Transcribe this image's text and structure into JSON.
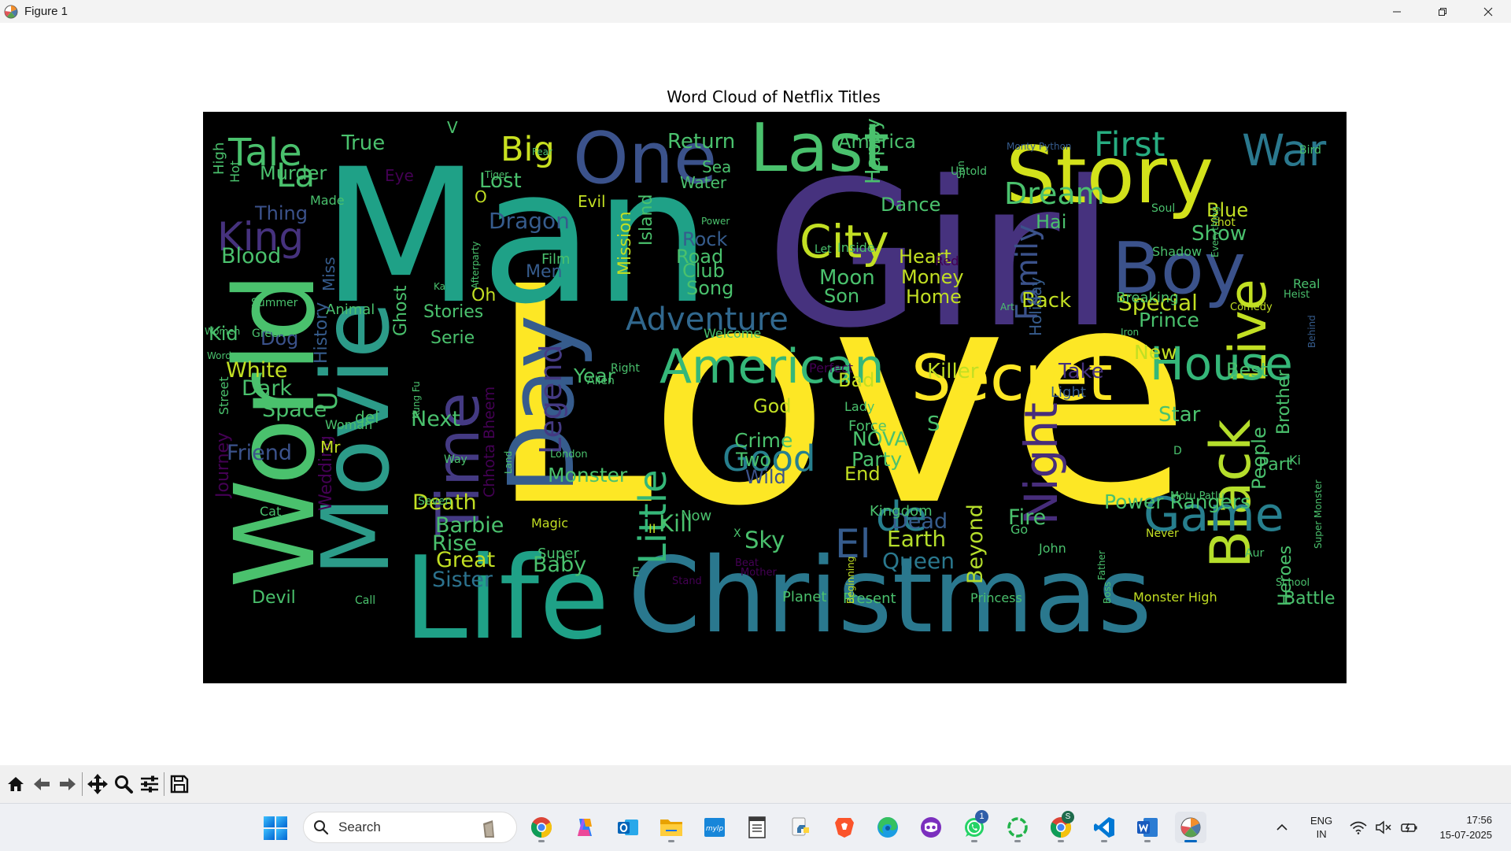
{
  "window": {
    "title": "Figure 1",
    "controls": {
      "minimize": "minimize-icon",
      "maximize": "restore-icon",
      "close": "close-icon"
    }
  },
  "figure": {
    "title": "Word Cloud of Netflix Titles",
    "background": "#000000",
    "palette": [
      "#440154",
      "#46327e",
      "#365c8d",
      "#277f8e",
      "#1fa187",
      "#4ac16d",
      "#a0da39",
      "#fde725"
    ]
  },
  "chart_data": {
    "type": "wordcloud",
    "title": "Word Cloud of Netflix Titles",
    "words": [
      {
        "t": "Love",
        "c": "#fde725"
      },
      {
        "t": "Man",
        "c": "#1fa187"
      },
      {
        "t": "Girl",
        "c": "#46327e"
      },
      {
        "t": "Christmas",
        "c": "#2a788e"
      },
      {
        "t": "Life",
        "c": "#1fa187"
      },
      {
        "t": "World",
        "c": "#4ac16d"
      },
      {
        "t": "Movie",
        "c": "#2c9b89"
      },
      {
        "t": "Story",
        "c": "#d3e21b"
      },
      {
        "t": "Last",
        "c": "#4ac16d"
      },
      {
        "t": "One",
        "c": "#3b528b"
      },
      {
        "t": "Day",
        "c": "#365c8d"
      },
      {
        "t": "Boy",
        "c": "#3b528b"
      },
      {
        "t": "Secret",
        "c": "#fde725"
      },
      {
        "t": "American",
        "c": "#35b779"
      },
      {
        "t": "Live",
        "c": "#c2df23"
      },
      {
        "t": "Black",
        "c": "#b5de2b"
      },
      {
        "t": "House",
        "c": "#35b779"
      },
      {
        "t": "Game",
        "c": "#277f8e"
      },
      {
        "t": "Time",
        "c": "#443a83"
      },
      {
        "t": "City",
        "c": "#c2df23"
      },
      {
        "t": "Tale",
        "c": "#4ac16d"
      },
      {
        "t": "King",
        "c": "#46327e"
      },
      {
        "t": "War",
        "c": "#2a788e"
      },
      {
        "t": "Big",
        "c": "#c8e020"
      },
      {
        "t": "First",
        "c": "#27ad81"
      },
      {
        "t": "Night",
        "c": "#472d7b"
      },
      {
        "t": "Good",
        "c": "#277f8e"
      },
      {
        "t": "Little",
        "c": "#35b779"
      },
      {
        "t": "de",
        "c": "#277f8e"
      },
      {
        "t": "El",
        "c": "#365c8d"
      },
      {
        "t": "Adventure",
        "c": "#31688e"
      },
      {
        "t": "Dream",
        "c": "#4ac16d"
      },
      {
        "t": "Family",
        "c": "#3b528b"
      },
      {
        "t": "Legend",
        "c": "#443a83"
      },
      {
        "t": "La",
        "c": "#4ac16d"
      },
      {
        "t": "Dragon",
        "c": "#365c8d"
      },
      {
        "t": "Power Rangers",
        "c": "#4ac16d"
      },
      {
        "t": "Earth",
        "c": "#b5de2b"
      },
      {
        "t": "Queen",
        "c": "#2a788e"
      },
      {
        "t": "Barbie",
        "c": "#4ac16d"
      },
      {
        "t": "Great",
        "c": "#c2df23"
      },
      {
        "t": "Sister",
        "c": "#2c728e"
      },
      {
        "t": "Rise",
        "c": "#4ac16d"
      },
      {
        "t": "Baby",
        "c": "#4ac16d"
      },
      {
        "t": "Kill",
        "c": "#4ac16d"
      },
      {
        "t": "Sky",
        "c": "#4ac16d"
      },
      {
        "t": "Dead",
        "c": "#365c8d"
      },
      {
        "t": "Fire",
        "c": "#4ac16d"
      },
      {
        "t": "Beyond",
        "c": "#b5de2b"
      },
      {
        "t": "Monster",
        "c": "#4ac16d"
      },
      {
        "t": "Death",
        "c": "#c2df23"
      },
      {
        "t": "Next",
        "c": "#4ac16d"
      },
      {
        "t": "Space",
        "c": "#4ac16d"
      },
      {
        "t": "Friend",
        "c": "#3b528b"
      },
      {
        "t": "Dark",
        "c": "#4ac16d"
      },
      {
        "t": "White",
        "c": "#c2df23"
      },
      {
        "t": "Kid",
        "c": "#4ac16d"
      },
      {
        "t": "Dog",
        "c": "#3b528b"
      },
      {
        "t": "Blood",
        "c": "#4ac16d"
      },
      {
        "t": "Murder",
        "c": "#4ac16d"
      },
      {
        "t": "True",
        "c": "#4ac16d"
      },
      {
        "t": "Thing",
        "c": "#3b528b"
      },
      {
        "t": "Lost",
        "c": "#4ac16d"
      },
      {
        "t": "Evil",
        "c": "#c2df23"
      },
      {
        "t": "Return",
        "c": "#4ac16d"
      },
      {
        "t": "Sea",
        "c": "#4ac16d"
      },
      {
        "t": "Water",
        "c": "#4ac16d"
      },
      {
        "t": "America",
        "c": "#4ac16d"
      },
      {
        "t": "Happy",
        "c": "#4ac16d"
      },
      {
        "t": "Dance",
        "c": "#4ac16d"
      },
      {
        "t": "Blue",
        "c": "#c2df23"
      },
      {
        "t": "Show",
        "c": "#4ac16d"
      },
      {
        "t": "Hai",
        "c": "#4ac16d"
      },
      {
        "t": "Heart",
        "c": "#c2df23"
      },
      {
        "t": "Money",
        "c": "#c2df23"
      },
      {
        "t": "Home",
        "c": "#c2df23"
      },
      {
        "t": "Moon",
        "c": "#4ac16d"
      },
      {
        "t": "Son",
        "c": "#4ac16d"
      },
      {
        "t": "Back",
        "c": "#c2df23"
      },
      {
        "t": "Special",
        "c": "#c2df23"
      },
      {
        "t": "Prince",
        "c": "#4ac16d"
      },
      {
        "t": "New",
        "c": "#c2df23"
      },
      {
        "t": "Killer",
        "c": "#c2df23"
      },
      {
        "t": "Take",
        "c": "#46327e"
      },
      {
        "t": "Best",
        "c": "#4ac16d"
      },
      {
        "t": "Star",
        "c": "#4ac16d"
      },
      {
        "t": "People",
        "c": "#4ac16d"
      },
      {
        "t": "Part",
        "c": "#4ac16d"
      },
      {
        "t": "Brother",
        "c": "#4ac16d"
      },
      {
        "t": "Heroes",
        "c": "#4ac16d"
      },
      {
        "t": "Battle",
        "c": "#4ac16d"
      },
      {
        "t": "Crime",
        "c": "#4ac16d"
      },
      {
        "t": "God",
        "c": "#c2df23"
      },
      {
        "t": "Two",
        "c": "#4ac16d"
      },
      {
        "t": "Wild",
        "c": "#3b528b"
      },
      {
        "t": "NOVA",
        "c": "#4ac16d"
      },
      {
        "t": "Party",
        "c": "#4ac16d"
      },
      {
        "t": "End",
        "c": "#c2df23"
      },
      {
        "t": "Force",
        "c": "#4ac16d"
      },
      {
        "t": "Kingdom",
        "c": "#4ac16d"
      },
      {
        "t": "Year",
        "c": "#4ac16d"
      },
      {
        "t": "Bad",
        "c": "#c2df23"
      },
      {
        "t": "Rock",
        "c": "#365c8d"
      },
      {
        "t": "Road",
        "c": "#4ac16d"
      },
      {
        "t": "Club",
        "c": "#4ac16d"
      },
      {
        "t": "Song",
        "c": "#4ac16d"
      },
      {
        "t": "Mission",
        "c": "#c2df23"
      },
      {
        "t": "Island",
        "c": "#4ac16d"
      },
      {
        "t": "Film",
        "c": "#4ac16d"
      },
      {
        "t": "Men",
        "c": "#365c8d"
      },
      {
        "t": "Oh",
        "c": "#c2df23"
      },
      {
        "t": "Stories",
        "c": "#4ac16d"
      },
      {
        "t": "Serie",
        "c": "#4ac16d"
      },
      {
        "t": "Animal",
        "c": "#4ac16d"
      },
      {
        "t": "Miss",
        "c": "#365c8d"
      },
      {
        "t": "History",
        "c": "#365c8d"
      },
      {
        "t": "Ghost",
        "c": "#4ac16d"
      },
      {
        "t": "Chhota Bheem",
        "c": "#440154"
      },
      {
        "t": "Wedding",
        "c": "#440154"
      },
      {
        "t": "Mr",
        "c": "#c2df23"
      },
      {
        "t": "del",
        "c": "#4ac16d"
      },
      {
        "t": "Woman",
        "c": "#4ac16d"
      },
      {
        "t": "Journey",
        "c": "#440154"
      },
      {
        "t": "Street",
        "c": "#4ac16d"
      },
      {
        "t": "High",
        "c": "#4ac16d"
      },
      {
        "t": "Hot",
        "c": "#4ac16d"
      },
      {
        "t": "Devil",
        "c": "#4ac16d"
      },
      {
        "t": "Magic",
        "c": "#c2df23"
      },
      {
        "t": "Super",
        "c": "#4ac16d"
      },
      {
        "t": "Now",
        "c": "#4ac16d"
      },
      {
        "t": "Welcome",
        "c": "#4ac16d"
      },
      {
        "t": "Inside",
        "c": "#4ac16d"
      },
      {
        "t": "Lady",
        "c": "#4ac16d"
      },
      {
        "t": "Planet",
        "c": "#4ac16d"
      },
      {
        "t": "Present",
        "c": "#4ac16d"
      },
      {
        "t": "John",
        "c": "#4ac16d"
      },
      {
        "t": "Princess",
        "c": "#4ac16d"
      },
      {
        "t": "Monster High",
        "c": "#c2df23"
      },
      {
        "t": "Holiday",
        "c": "#365c8d"
      },
      {
        "t": "Eye",
        "c": "#440154"
      },
      {
        "t": "Made",
        "c": "#4ac16d"
      },
      {
        "t": "Cat",
        "c": "#4ac16d"
      },
      {
        "t": "Summer",
        "c": "#4ac16d"
      },
      {
        "t": "Women",
        "c": "#4ac16d"
      },
      {
        "t": "Green",
        "c": "#4ac16d"
      },
      {
        "t": "Word",
        "c": "#4ac16d"
      },
      {
        "t": "Kung Fu",
        "c": "#4ac16d"
      },
      {
        "t": "Seven",
        "c": "#4ac16d"
      },
      {
        "t": "Way",
        "c": "#4ac16d"
      },
      {
        "t": "Call",
        "c": "#4ac16d"
      },
      {
        "t": "Land",
        "c": "#4ac16d"
      },
      {
        "t": "London",
        "c": "#4ac16d"
      },
      {
        "t": "Alien",
        "c": "#4ac16d"
      },
      {
        "t": "Right",
        "c": "#4ac16d"
      },
      {
        "t": "Perfect",
        "c": "#440154"
      },
      {
        "t": "Light",
        "c": "#365c8d"
      },
      {
        "t": "Red",
        "c": "#440154"
      },
      {
        "t": "Let",
        "c": "#4ac16d"
      },
      {
        "t": "Power",
        "c": "#4ac16d"
      },
      {
        "t": "Tiger",
        "c": "#4ac16d"
      },
      {
        "t": "Fear",
        "c": "#4ac16d"
      },
      {
        "t": "Untold",
        "c": "#4ac16d"
      },
      {
        "t": "Sun",
        "c": "#4ac16d"
      },
      {
        "t": "Art",
        "c": "#4ac16d"
      },
      {
        "t": "Monty Python",
        "c": "#365c8d"
      },
      {
        "t": "Bird",
        "c": "#4ac16d"
      },
      {
        "t": "Soul",
        "c": "#4ac16d"
      },
      {
        "t": "Shot",
        "c": "#c2df23"
      },
      {
        "t": "Shadow",
        "c": "#4ac16d"
      },
      {
        "t": "Everything",
        "c": "#4ac16d"
      },
      {
        "t": "Breaking",
        "c": "#4ac16d"
      },
      {
        "t": "Real",
        "c": "#4ac16d"
      },
      {
        "t": "Heist",
        "c": "#4ac16d"
      },
      {
        "t": "Comedy",
        "c": "#c2df23"
      },
      {
        "t": "Iron",
        "c": "#4ac16d"
      },
      {
        "t": "Behind",
        "c": "#365c8d"
      },
      {
        "t": "Ki",
        "c": "#4ac16d"
      },
      {
        "t": "Super Monster",
        "c": "#4ac16d"
      },
      {
        "t": "School",
        "c": "#4ac16d"
      },
      {
        "t": "Aur",
        "c": "#4ac16d"
      },
      {
        "t": "Never",
        "c": "#c2df23"
      },
      {
        "t": "Motu Patlu",
        "c": "#4ac16d"
      },
      {
        "t": "D",
        "c": "#4ac16d"
      },
      {
        "t": "Go",
        "c": "#4ac16d"
      },
      {
        "t": "Father",
        "c": "#4ac16d"
      },
      {
        "t": "Boss",
        "c": "#4ac16d"
      },
      {
        "t": "Beginning",
        "c": "#c2df23"
      },
      {
        "t": "Beat",
        "c": "#440154"
      },
      {
        "t": "Mother",
        "c": "#440154"
      },
      {
        "t": "Stand",
        "c": "#440154"
      },
      {
        "t": "Afterparty",
        "c": "#4ac16d"
      },
      {
        "t": "Ka",
        "c": "#4ac16d"
      },
      {
        "t": "II",
        "c": "#c2df23"
      },
      {
        "t": "E",
        "c": "#4ac16d"
      },
      {
        "t": "X",
        "c": "#4ac16d"
      },
      {
        "t": "V",
        "c": "#4ac16d"
      },
      {
        "t": "O",
        "c": "#c2df23"
      },
      {
        "t": "U",
        "c": "#4ac16d"
      },
      {
        "t": "S",
        "c": "#4ac16d"
      }
    ]
  },
  "toolbar": {
    "buttons": [
      {
        "name": "home-button",
        "icon": "home-icon"
      },
      {
        "name": "back-button",
        "icon": "arrow-left-icon"
      },
      {
        "name": "forward-button",
        "icon": "arrow-right-icon"
      },
      {
        "name": "pan-button",
        "icon": "move-icon"
      },
      {
        "name": "zoom-button",
        "icon": "magnifier-icon"
      },
      {
        "name": "configure-button",
        "icon": "sliders-icon"
      },
      {
        "name": "save-button",
        "icon": "floppy-icon"
      }
    ]
  },
  "taskbar": {
    "search_label": "Search",
    "apps": [
      "chrome-icon",
      "copilot-icon",
      "outlook-icon",
      "file-explorer-icon",
      "mylp-icon",
      "notepad-icon",
      "python-icon",
      "brave-icon",
      "edge-icon",
      "discord-icon",
      "whatsapp-icon",
      "loader-icon",
      "chrome-profile-icon",
      "vscode-icon",
      "word-icon",
      "matplotlib-icon"
    ],
    "whatsapp_badge": "1",
    "chrome_badge": "S",
    "language": "ENG",
    "region": "IN",
    "time": "17:56",
    "date": "15-07-2025"
  }
}
